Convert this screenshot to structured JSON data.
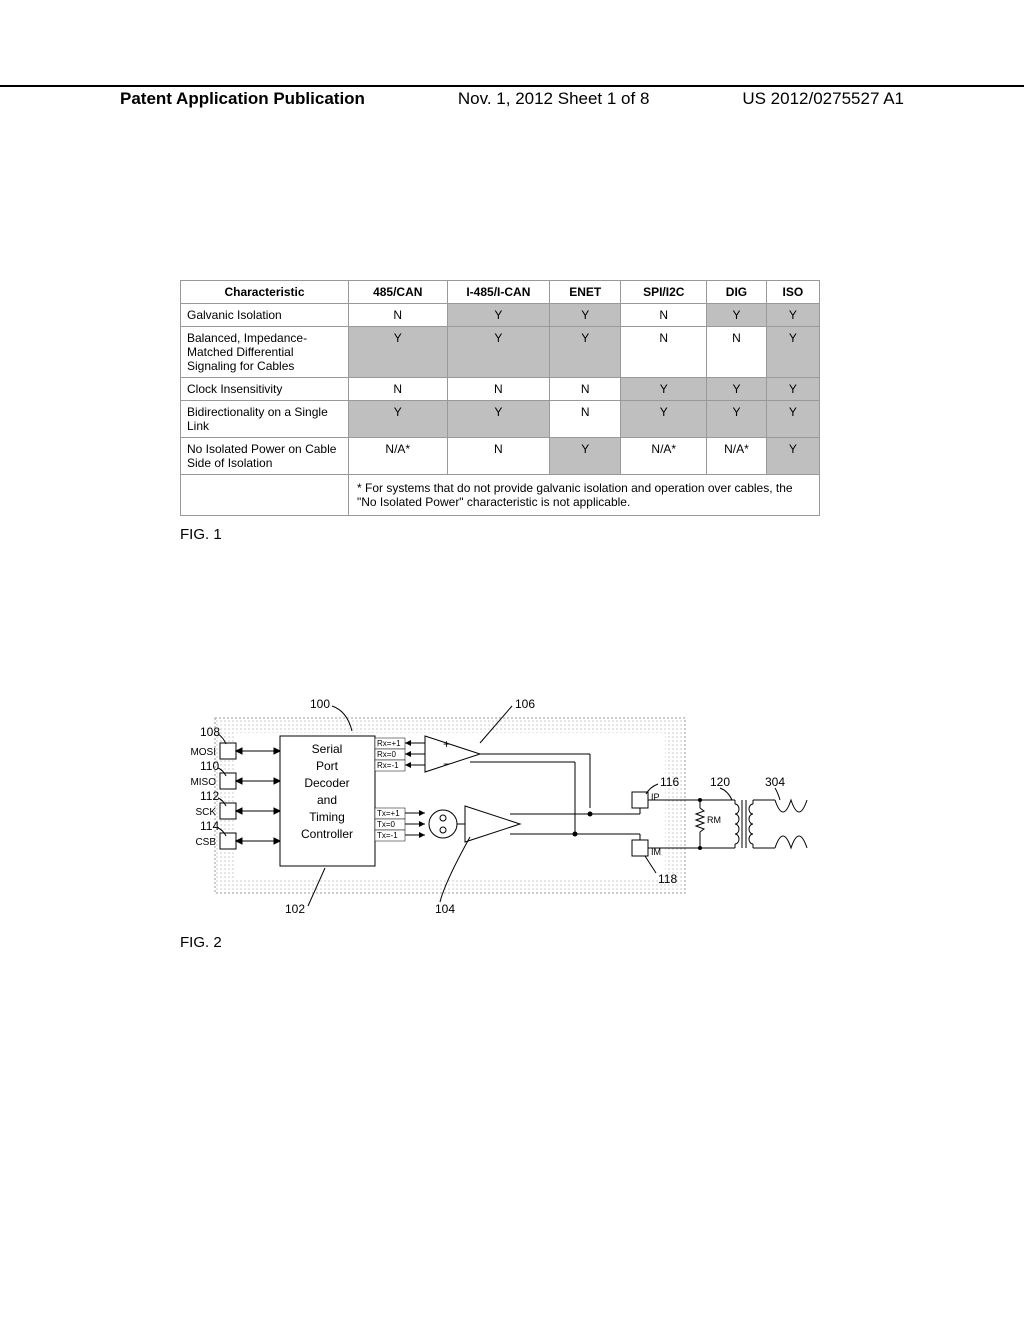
{
  "header": {
    "left": "Patent Application Publication",
    "center": "Nov. 1, 2012  Sheet 1 of 8",
    "right": "US 2012/0275527 A1"
  },
  "table": {
    "columns": [
      "Characteristic",
      "485/CAN",
      "I-485/I-CAN",
      "ENET",
      "SPI/I2C",
      "DIG",
      "ISO"
    ],
    "rows": [
      {
        "label": "Galvanic Isolation",
        "cells": [
          {
            "v": "N",
            "s": false
          },
          {
            "v": "Y",
            "s": true
          },
          {
            "v": "Y",
            "s": true
          },
          {
            "v": "N",
            "s": false
          },
          {
            "v": "Y",
            "s": true
          },
          {
            "v": "Y",
            "s": true
          }
        ]
      },
      {
        "label": "Balanced, Impedance-Matched Differential Signaling for Cables",
        "cells": [
          {
            "v": "Y",
            "s": true
          },
          {
            "v": "Y",
            "s": true
          },
          {
            "v": "Y",
            "s": true
          },
          {
            "v": "N",
            "s": false
          },
          {
            "v": "N",
            "s": false
          },
          {
            "v": "Y",
            "s": true
          }
        ]
      },
      {
        "label": "Clock Insensitivity",
        "cells": [
          {
            "v": "N",
            "s": false
          },
          {
            "v": "N",
            "s": false
          },
          {
            "v": "N",
            "s": false
          },
          {
            "v": "Y",
            "s": true
          },
          {
            "v": "Y",
            "s": true
          },
          {
            "v": "Y",
            "s": true
          }
        ]
      },
      {
        "label": "Bidirectionality on a Single Link",
        "cells": [
          {
            "v": "Y",
            "s": true
          },
          {
            "v": "Y",
            "s": true
          },
          {
            "v": "N",
            "s": false
          },
          {
            "v": "Y",
            "s": true
          },
          {
            "v": "Y",
            "s": true
          },
          {
            "v": "Y",
            "s": true
          }
        ]
      },
      {
        "label": "No Isolated Power on Cable Side of Isolation",
        "cells": [
          {
            "v": "N/A*",
            "s": false
          },
          {
            "v": "N",
            "s": false
          },
          {
            "v": "Y",
            "s": true
          },
          {
            "v": "N/A*",
            "s": false
          },
          {
            "v": "N/A*",
            "s": false
          },
          {
            "v": "Y",
            "s": true
          }
        ]
      }
    ],
    "footnote": "* For systems that do not provide galvanic isolation and operation over cables, the \"No Isolated Power\" characteristic is not applicable."
  },
  "fig1_label": "FIG. 1",
  "fig2_label": "FIG. 2",
  "diagram": {
    "refs": {
      "r100": "100",
      "r102": "102",
      "r104": "104",
      "r106": "106",
      "r108": "108",
      "r110": "110",
      "r112": "112",
      "r114": "114",
      "r116": "116",
      "r118": "118",
      "r120": "120",
      "r304": "304"
    },
    "pins": {
      "mosi": "MOSI",
      "miso": "MISO",
      "sck": "SCK",
      "csb": "CSB"
    },
    "block_text": {
      "l1": "Serial",
      "l2": "Port",
      "l3": "Decoder",
      "l4": "and",
      "l5": "Timing",
      "l6": "Controller"
    },
    "rx": {
      "p": "Rx=+1",
      "z": "Rx=0",
      "m": "Rx=-1"
    },
    "tx": {
      "p": "Tx=+1",
      "z": "Tx=0",
      "m": "Tx=-1"
    },
    "ports": {
      "ip": "IP",
      "im": "IM",
      "rm": "RM"
    },
    "colors": {
      "stroke": "#000000",
      "light": "#cccccc",
      "hatch": "#999999"
    }
  }
}
